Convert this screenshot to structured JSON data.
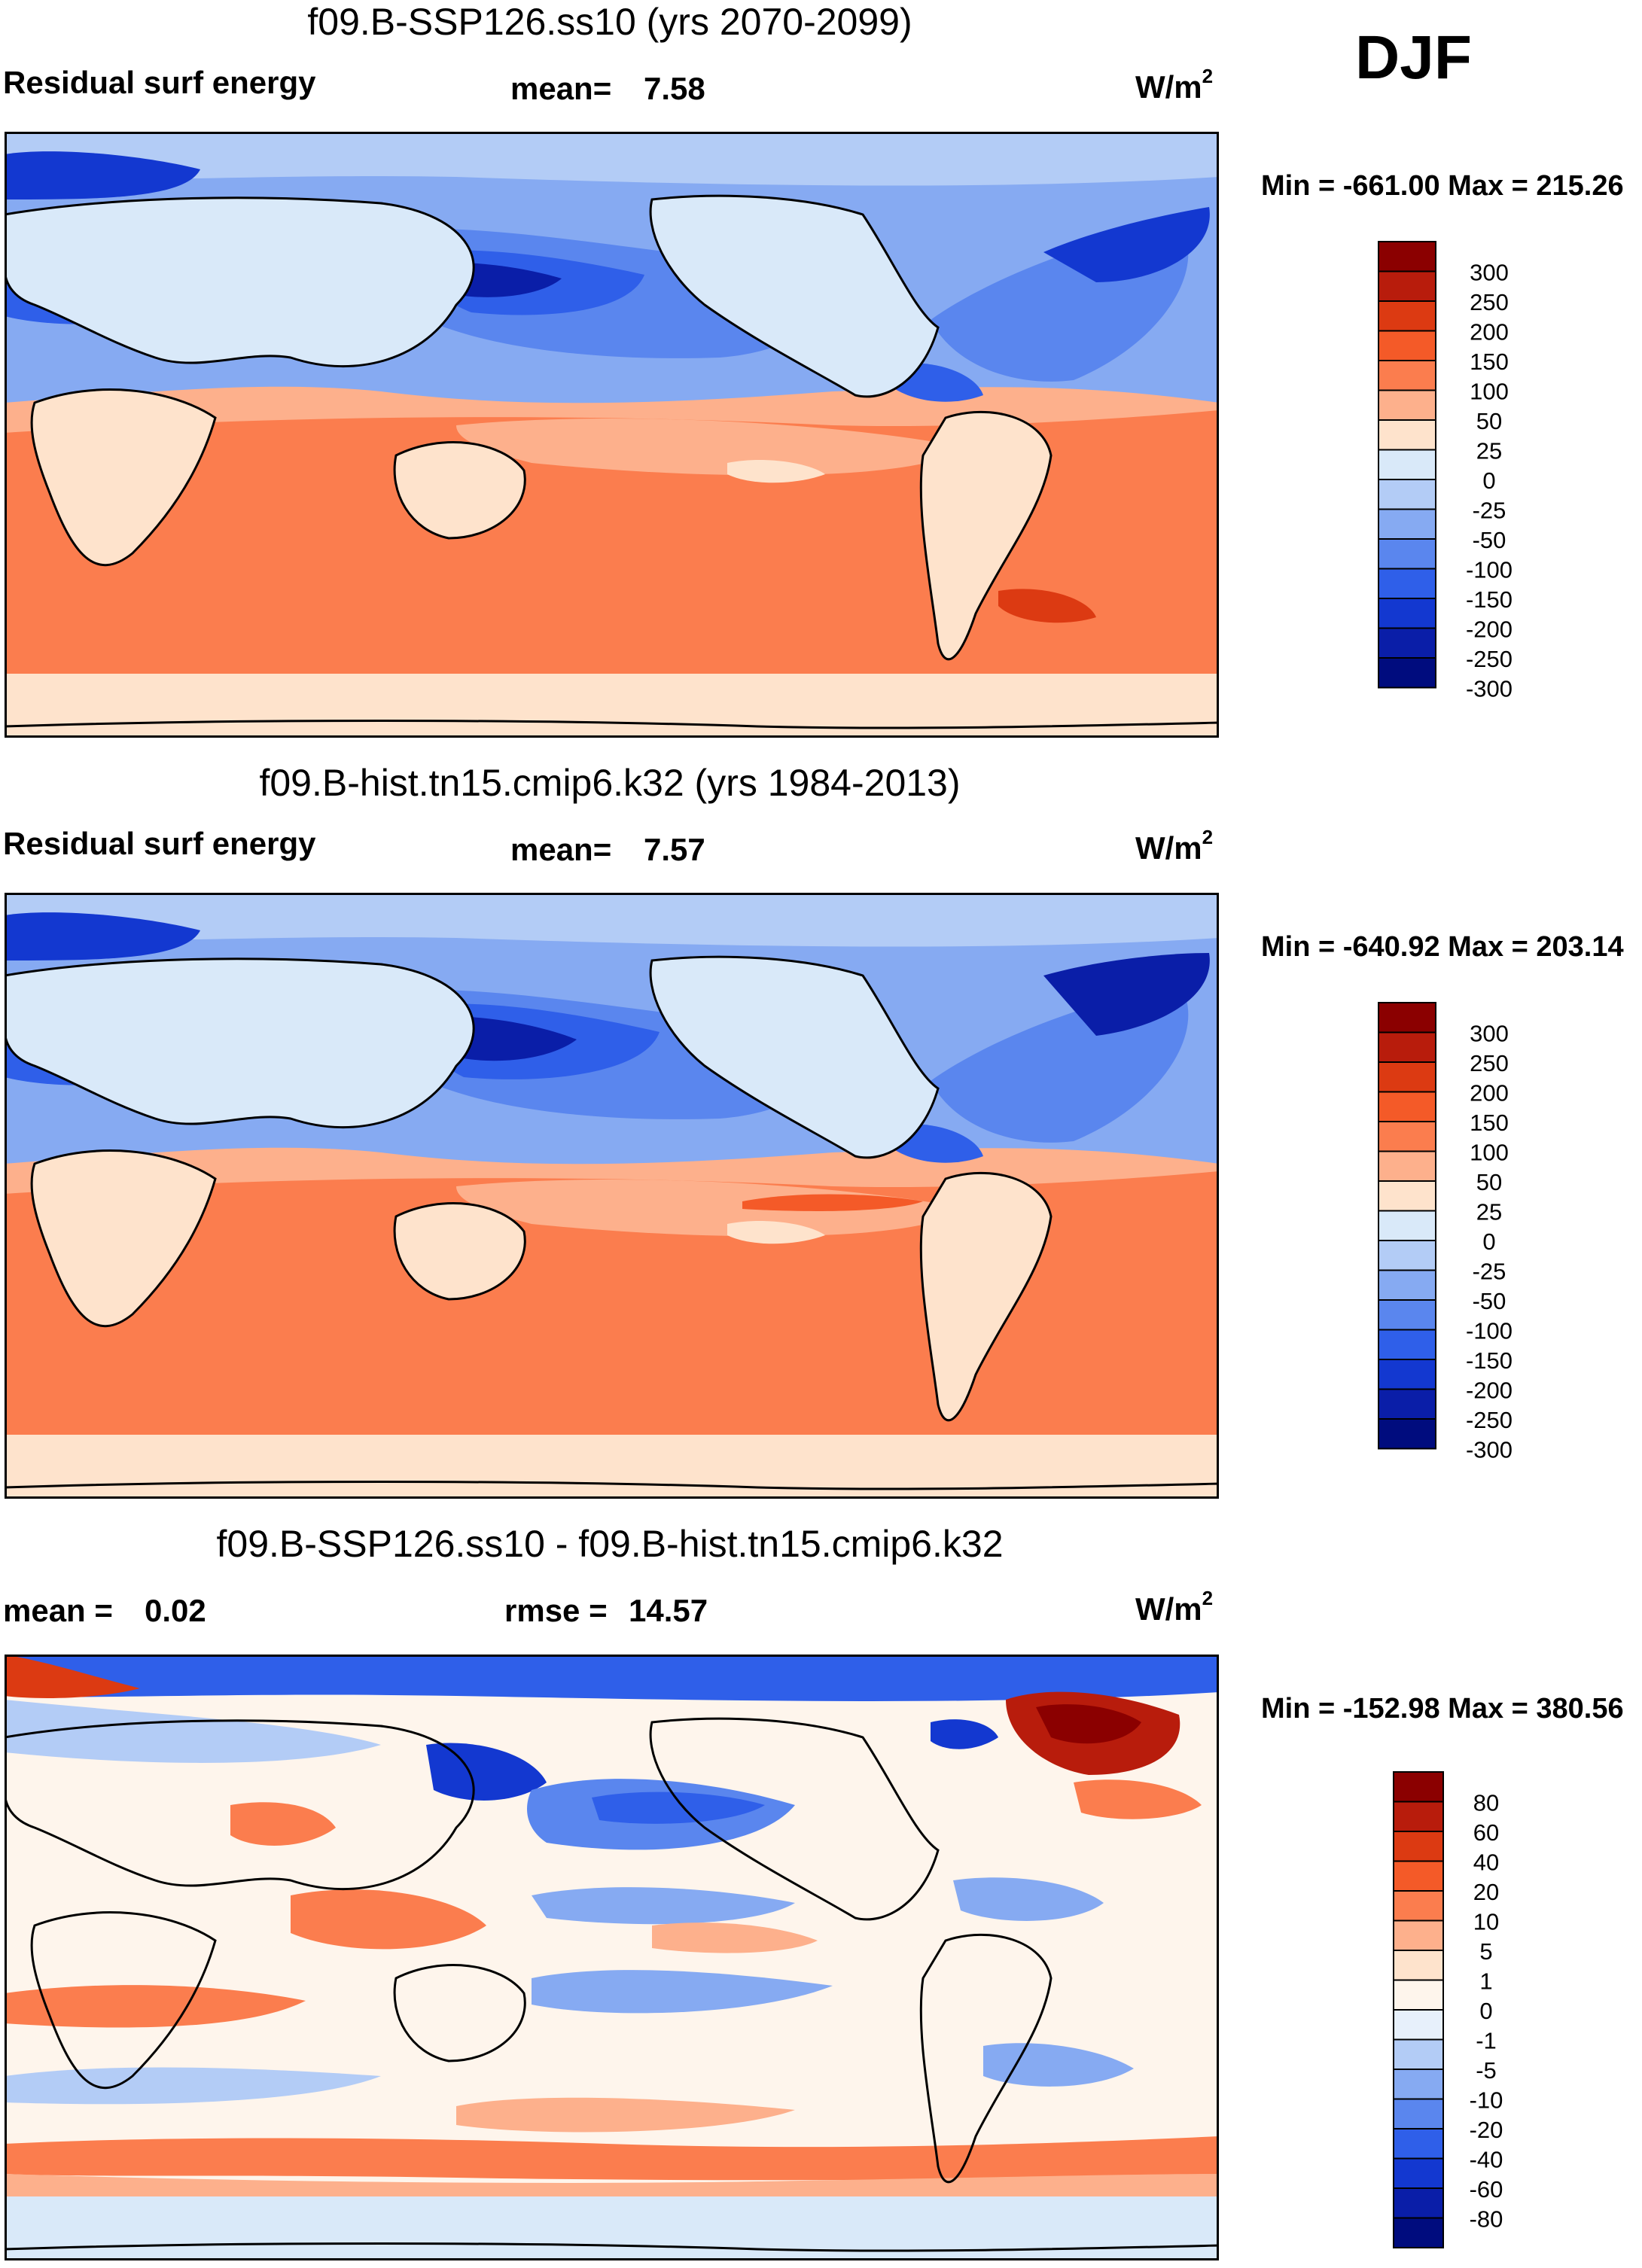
{
  "season": "DJF",
  "legend_colors": {
    "absolute": [
      "#8b0000",
      "#b81c0c",
      "#dc3a12",
      "#f45a28",
      "#fb7d4e",
      "#fdb08c",
      "#fee3cc",
      "#d9e9f9",
      "#b3ccf6",
      "#86aaf2",
      "#5a86ee",
      "#2f5fe9",
      "#1338d0",
      "#0a1ea8",
      "#000c7e"
    ],
    "difference": [
      "#8b0000",
      "#b81c0c",
      "#dc3a12",
      "#f45a28",
      "#fb7d4e",
      "#fdb08c",
      "#fee3cc",
      "#fef5ec",
      "#e7f0fb",
      "#b3ccf6",
      "#86aaf2",
      "#5a86ee",
      "#2f5fe9",
      "#1338d0",
      "#0a1ea8",
      "#000c7e"
    ]
  },
  "panels": [
    {
      "title": "f09.B-SSP126.ss10 (yrs 2070-2099)",
      "left_label": "Residual surf energy",
      "center_label": "mean=",
      "center_value": "7.58",
      "units": "W/m",
      "units_exp": "2",
      "min_max": "Min = -661.00 Max = 215.26",
      "legend_labels": [
        "300",
        "250",
        "200",
        "150",
        "100",
        "50",
        "25",
        "0",
        "-25",
        "-50",
        "-100",
        "-150",
        "-200",
        "-250",
        "-300"
      ]
    },
    {
      "title": "f09.B-hist.tn15.cmip6.k32 (yrs 1984-2013)",
      "left_label": "Residual surf energy",
      "center_label": "mean=",
      "center_value": "7.57",
      "units": "W/m",
      "units_exp": "2",
      "min_max": "Min = -640.92 Max = 203.14",
      "legend_labels": [
        "300",
        "250",
        "200",
        "150",
        "100",
        "50",
        "25",
        "0",
        "-25",
        "-50",
        "-100",
        "-150",
        "-200",
        "-250",
        "-300"
      ]
    },
    {
      "title": "f09.B-SSP126.ss10 - f09.B-hist.tn15.cmip6.k32",
      "left_label": "mean =",
      "left_value": "0.02",
      "center_label": "rmse =",
      "center_value": "14.57",
      "units": "W/m",
      "units_exp": "2",
      "min_max": "Min = -152.98 Max = 380.56",
      "legend_labels": [
        "80",
        "60",
        "40",
        "20",
        "10",
        "5",
        "1",
        "0",
        "-1",
        "-5",
        "-10",
        "-20",
        "-40",
        "-60",
        "-80"
      ]
    }
  ]
}
